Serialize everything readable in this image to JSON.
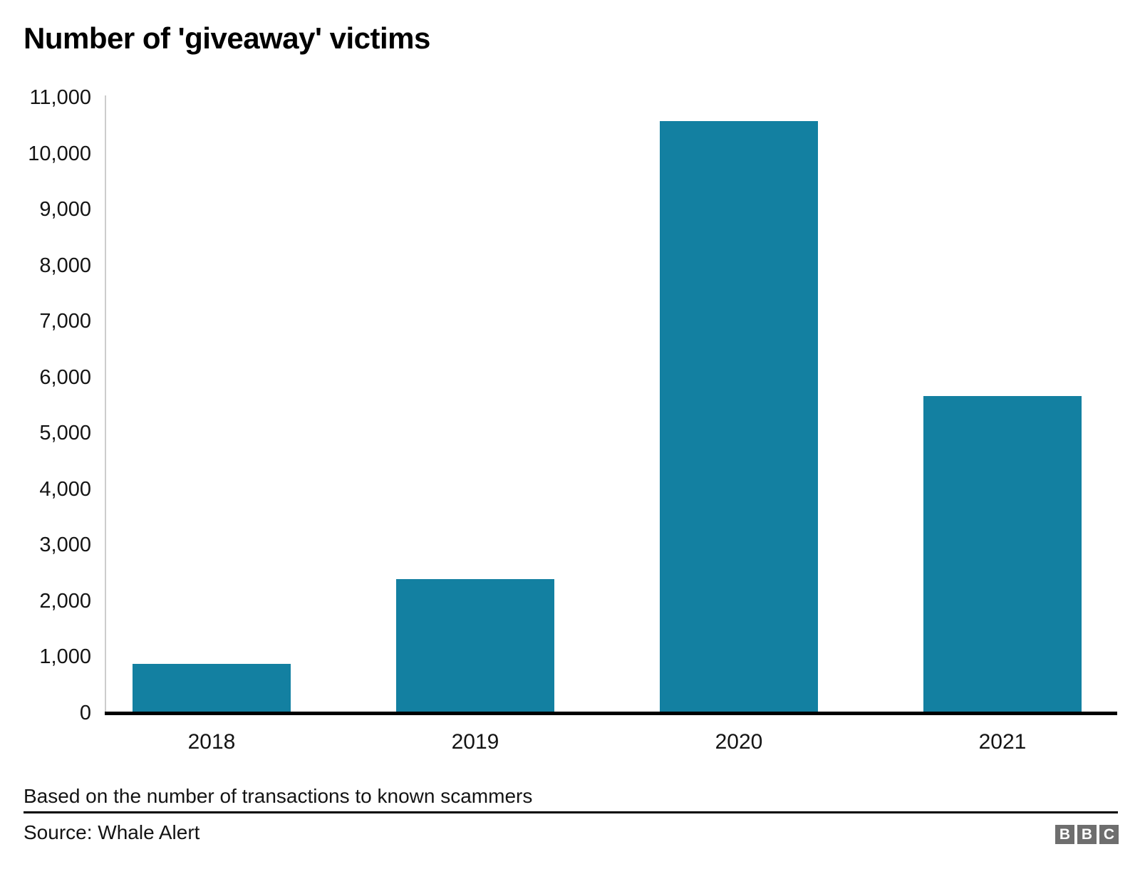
{
  "chart": {
    "title": "Number of 'giveaway' victims",
    "footnote": "Based on the number of transactions to known scammers",
    "source": "Source: Whale Alert"
  },
  "logo": {
    "name": "BBC",
    "letters": [
      "B",
      "B",
      "C"
    ]
  },
  "colors": {
    "bar": "#1380A1",
    "y_axis_line": "#cccccc",
    "x_axis_line": "#000000",
    "logo_gray": "#6e6e6e",
    "text": "#141414"
  },
  "chart_data": {
    "type": "bar",
    "categories": [
      "2018",
      "2019",
      "2020",
      "2021"
    ],
    "values": [
      880,
      2400,
      10580,
      5670
    ],
    "title": "Number of 'giveaway' victims",
    "xlabel": "",
    "ylabel": "",
    "ylim": [
      0,
      11000
    ],
    "yticks": [
      0,
      1000,
      2000,
      3000,
      4000,
      5000,
      6000,
      7000,
      8000,
      9000,
      10000,
      11000
    ],
    "grid": false,
    "legend": false
  }
}
